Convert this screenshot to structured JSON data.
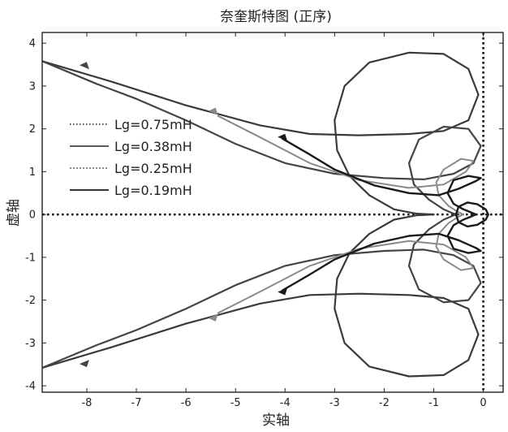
{
  "chart_data": {
    "type": "line",
    "title": "奈奎斯特图 (正序)",
    "xlabel": "实轴",
    "ylabel": "虚轴",
    "xlim": [
      -8.9,
      0.4
    ],
    "ylim": [
      -4.15,
      4.25
    ],
    "x_ticks": [
      -8,
      -7,
      -6,
      -5,
      -4,
      -3,
      -2,
      -1,
      0
    ],
    "y_ticks": [
      -4,
      -3,
      -2,
      -1,
      0,
      1,
      2,
      3,
      4
    ],
    "legend_position": "left",
    "reference_lines": {
      "x_zero": true,
      "y_zero": true,
      "style": "dotted"
    },
    "grid": false,
    "series": [
      {
        "name": "Lg=0.75mH",
        "color": "#3a3a3a",
        "upper": [
          [
            -8.9,
            3.58
          ],
          [
            -7.5,
            3.1
          ],
          [
            -6,
            2.55
          ],
          [
            -4.5,
            2.08
          ],
          [
            -3.5,
            1.88
          ],
          [
            -2.5,
            1.85
          ],
          [
            -1.5,
            1.88
          ],
          [
            -0.8,
            1.95
          ],
          [
            -0.3,
            2.2
          ],
          [
            -0.1,
            2.8
          ],
          [
            -0.3,
            3.4
          ],
          [
            -0.8,
            3.75
          ],
          [
            -1.5,
            3.78
          ],
          [
            -2.3,
            3.55
          ],
          [
            -2.8,
            3.0
          ],
          [
            -3.0,
            2.2
          ],
          [
            -2.95,
            1.5
          ],
          [
            -2.7,
            0.9
          ],
          [
            -2.3,
            0.45
          ],
          [
            -1.8,
            0.12
          ],
          [
            -1.35,
            0.02
          ],
          [
            -1.0,
            0.0
          ]
        ]
      },
      {
        "name": "Lg=0.38mH",
        "color": "#444444",
        "upper": [
          [
            -8.9,
            3.58
          ],
          [
            -7.8,
            3.05
          ],
          [
            -7,
            2.7
          ],
          [
            -6,
            2.2
          ],
          [
            -5,
            1.65
          ],
          [
            -4,
            1.2
          ],
          [
            -3,
            0.95
          ],
          [
            -2,
            0.85
          ],
          [
            -1.2,
            0.82
          ],
          [
            -0.6,
            0.95
          ],
          [
            -0.2,
            1.2
          ],
          [
            -0.05,
            1.6
          ],
          [
            -0.3,
            2.0
          ],
          [
            -0.8,
            2.05
          ],
          [
            -1.3,
            1.75
          ],
          [
            -1.5,
            1.2
          ],
          [
            -1.4,
            0.7
          ],
          [
            -1.1,
            0.35
          ],
          [
            -0.8,
            0.12
          ],
          [
            -0.6,
            0.02
          ],
          [
            -0.5,
            0.0
          ]
        ]
      },
      {
        "name": "Lg=0.25mH",
        "color": "#8a8a8a",
        "upper": [
          [
            -5.35,
            2.3
          ],
          [
            -4.5,
            1.8
          ],
          [
            -3.5,
            1.2
          ],
          [
            -2.5,
            0.8
          ],
          [
            -1.5,
            0.62
          ],
          [
            -0.8,
            0.7
          ],
          [
            -0.35,
            1.0
          ],
          [
            -0.2,
            1.25
          ],
          [
            -0.45,
            1.3
          ],
          [
            -0.8,
            1.05
          ],
          [
            -0.95,
            0.75
          ],
          [
            -0.9,
            0.45
          ],
          [
            -0.7,
            0.2
          ],
          [
            -0.5,
            0.05
          ],
          [
            -0.4,
            0.0
          ]
        ]
      },
      {
        "name": "Lg=0.19mH",
        "color": "#1a1a1a",
        "upper": [
          [
            -4.05,
            1.77
          ],
          [
            -3.5,
            1.4
          ],
          [
            -3,
            1.05
          ],
          [
            -2.2,
            0.68
          ],
          [
            -1.5,
            0.5
          ],
          [
            -0.9,
            0.45
          ],
          [
            -0.5,
            0.6
          ],
          [
            -0.15,
            0.78
          ],
          [
            -0.05,
            0.85
          ],
          [
            -0.3,
            0.9
          ],
          [
            -0.6,
            0.8
          ],
          [
            -0.72,
            0.5
          ],
          [
            -0.6,
            0.25
          ],
          [
            -0.4,
            0.12
          ],
          [
            -0.25,
            0.05
          ],
          [
            -0.15,
            0.0
          ]
        ]
      }
    ],
    "inner_loop": [
      [
        -0.55,
        0
      ],
      [
        -0.5,
        0.18
      ],
      [
        -0.32,
        0.28
      ],
      [
        -0.12,
        0.24
      ],
      [
        0.05,
        0.12
      ],
      [
        0.1,
        0
      ],
      [
        0.05,
        -0.12
      ],
      [
        -0.12,
        -0.24
      ],
      [
        -0.32,
        -0.28
      ],
      [
        -0.5,
        -0.18
      ],
      [
        -0.55,
        0
      ]
    ],
    "arrows": [
      {
        "series": "Lg=0.38mH",
        "x": -8.05,
        "y": 3.45
      },
      {
        "series": "Lg=0.38mH",
        "x": -8.05,
        "y": -3.45
      },
      {
        "series": "Lg=0.25mH",
        "x": -5.45,
        "y": 2.38
      },
      {
        "series": "Lg=0.25mH",
        "x": -5.45,
        "y": -2.38
      },
      {
        "series": "Lg=0.19mH",
        "x": -4.05,
        "y": 1.77
      },
      {
        "series": "Lg=0.19mH",
        "x": -4.05,
        "y": -1.77
      }
    ]
  }
}
